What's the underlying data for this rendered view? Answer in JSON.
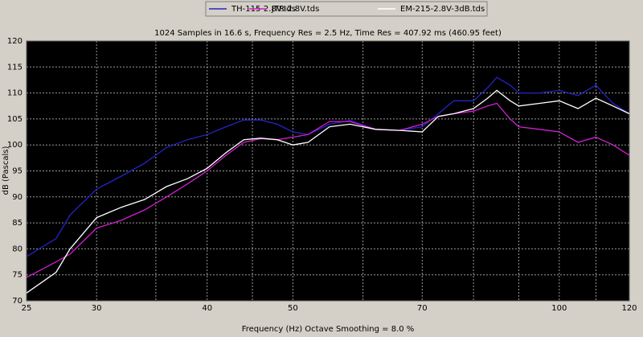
{
  "chart_data": {
    "type": "line",
    "title": "1024 Samples in 16.6 s, Frequency Res = 2.5 Hz, Time Res = 407.92 ms (460.95 feet)",
    "x_label": "Frequency (Hz) Octave Smoothing = 8.0 %",
    "y_label": "dB (Pascals)",
    "x": [
      25,
      27,
      28,
      30,
      32,
      34,
      36,
      38,
      40,
      42,
      44,
      46,
      48,
      50,
      52,
      55,
      58,
      62,
      66,
      70,
      73,
      76,
      80,
      83,
      85,
      88,
      90,
      95,
      100,
      105,
      110,
      115,
      120
    ],
    "series": [
      {
        "name": "TH-115-2.8V.tds",
        "color": "#2424c8",
        "values": [
          78.5,
          82,
          86.5,
          91.5,
          94,
          96.5,
          99.5,
          101,
          102,
          103.5,
          104.8,
          104.8,
          104,
          102.5,
          102,
          104,
          104.7,
          103,
          102.8,
          103.5,
          106,
          108.5,
          108.5,
          111,
          113,
          111.5,
          110,
          110,
          110.5,
          109.5,
          111.5,
          108,
          106
        ]
      },
      {
        "name": "JTR-2.8V.tds",
        "color": "#d020d0",
        "values": [
          74.5,
          77.5,
          79,
          84,
          85.5,
          87.5,
          90,
          92.5,
          95,
          98,
          100.5,
          101.2,
          101,
          101.5,
          102,
          104.5,
          104.5,
          103,
          102.8,
          104,
          105.5,
          106,
          106.5,
          107.5,
          108,
          105,
          103.5,
          103,
          102.5,
          100.5,
          101.5,
          100,
          98
        ]
      },
      {
        "name": "EM-215-2.8V-3dB.tds",
        "color": "#ffffff",
        "values": [
          71.5,
          75.5,
          80,
          86,
          88,
          89.5,
          92,
          93.5,
          95.5,
          98.5,
          101,
          101.3,
          101,
          100,
          100.5,
          103.5,
          104,
          103,
          102.8,
          102.5,
          105.5,
          106,
          107,
          109,
          110.5,
          108.5,
          107.5,
          108,
          108.5,
          107,
          109,
          107.5,
          106
        ]
      }
    ],
    "log_x": true,
    "xlim": [
      25,
      120
    ],
    "xticks": [
      25,
      30,
      40,
      50,
      70,
      100,
      120
    ],
    "xgrid": [
      35,
      45,
      60,
      80,
      90,
      110
    ],
    "ylim": [
      70,
      120
    ],
    "yticks": [
      70,
      75,
      80,
      85,
      90,
      95,
      100,
      105,
      110,
      115,
      120
    ],
    "grid": true,
    "legend": "top"
  }
}
